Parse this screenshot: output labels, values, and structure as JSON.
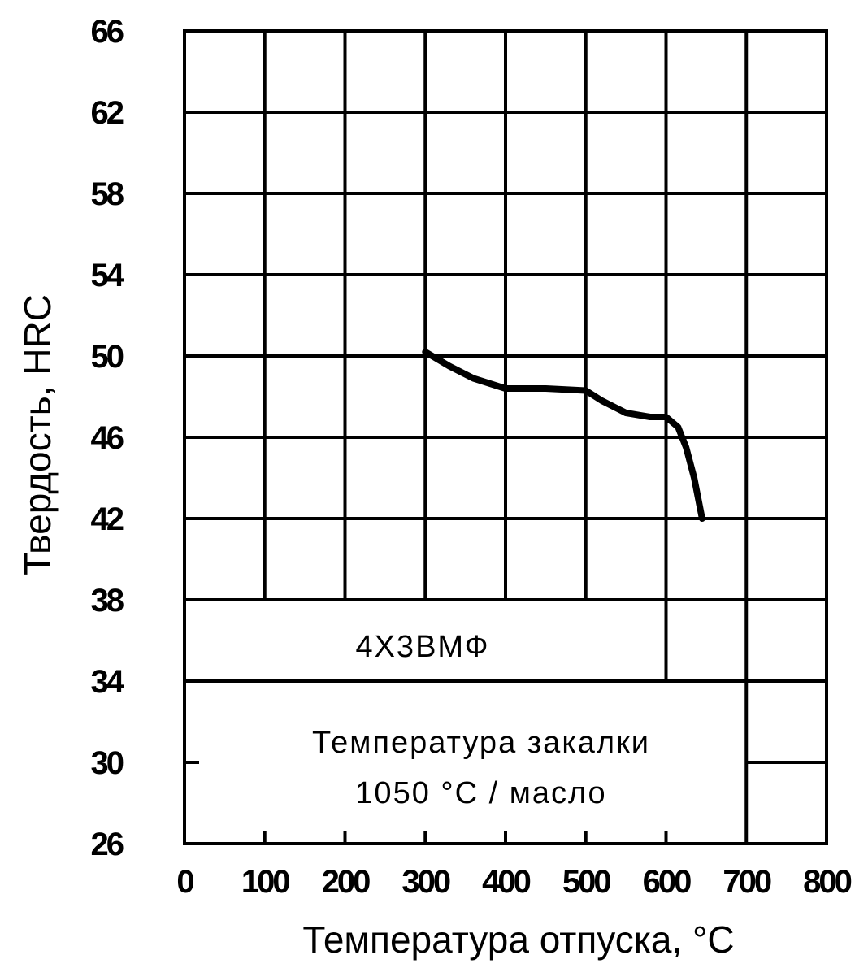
{
  "chart_data": {
    "type": "line",
    "xlabel": "Температура отпуска, °C",
    "ylabel": "Твердость, HRC",
    "xlim": [
      0,
      800
    ],
    "ylim": [
      26,
      66
    ],
    "x_ticks": [
      "0",
      "100",
      "200",
      "300",
      "400",
      "500",
      "600",
      "700",
      "800"
    ],
    "y_ticks": [
      "66",
      "62",
      "58",
      "54",
      "50",
      "46",
      "42",
      "38",
      "34",
      "30",
      "26"
    ],
    "grid": true,
    "series": [
      {
        "name": "4Х3ВМФ",
        "x": [
          300,
          330,
          360,
          400,
          450,
          500,
          520,
          550,
          580,
          600,
          615,
          625,
          635,
          645
        ],
        "y": [
          50.2,
          49.5,
          48.9,
          48.4,
          48.4,
          48.3,
          47.8,
          47.2,
          47.0,
          47.0,
          46.5,
          45.5,
          44.0,
          42.0
        ]
      }
    ],
    "annotations": {
      "grade": "4Х3ВМФ",
      "quench_line1": "Температура закалки",
      "quench_line2": "1050 °C / масло"
    }
  }
}
